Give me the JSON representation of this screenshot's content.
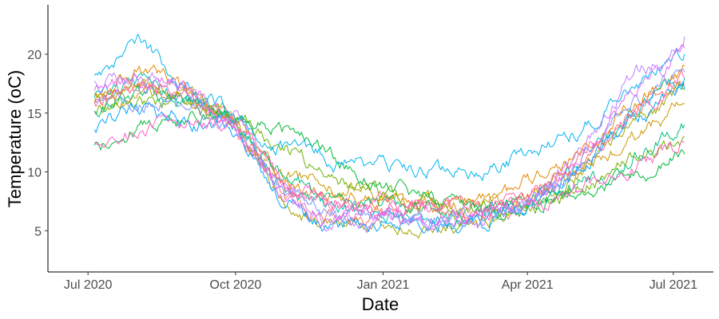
{
  "chart_data": {
    "type": "line",
    "title": "",
    "xlabel": "Date",
    "ylabel": "Temperature (oC)",
    "x_axis": {
      "type": "date",
      "range": [
        "2020-06-06",
        "2021-07-26"
      ],
      "ticks": [
        {
          "date": "2020-07-01",
          "label": "Jul 2020"
        },
        {
          "date": "2020-10-01",
          "label": "Oct 2020"
        },
        {
          "date": "2021-01-01",
          "label": "Jan 2021"
        },
        {
          "date": "2021-04-01",
          "label": "Apr 2021"
        },
        {
          "date": "2021-07-01",
          "label": "Jul 2021"
        }
      ]
    },
    "y_axis": {
      "range": [
        1.5,
        24.2
      ],
      "ticks": [
        5,
        10,
        15,
        20
      ]
    },
    "grid": false,
    "legend": "none",
    "series": [
      {
        "color": "#F8766D",
        "values": [
          [
            "2020-07-05",
            16.0
          ],
          [
            "2020-08-01",
            17.8
          ],
          [
            "2020-09-01",
            16.8
          ],
          [
            "2020-10-01",
            14.0
          ],
          [
            "2020-11-01",
            8.0
          ],
          [
            "2020-12-01",
            6.0
          ],
          [
            "2021-01-01",
            6.8
          ],
          [
            "2021-02-01",
            6.4
          ],
          [
            "2021-03-01",
            6.0
          ],
          [
            "2021-04-01",
            7.5
          ],
          [
            "2021-05-01",
            10.0
          ],
          [
            "2021-06-01",
            14.5
          ],
          [
            "2021-07-08",
            17.5
          ]
        ]
      },
      {
        "color": "#E58700",
        "values": [
          [
            "2020-07-05",
            17.0
          ],
          [
            "2020-08-01",
            18.5
          ],
          [
            "2020-09-01",
            17.0
          ],
          [
            "2020-10-01",
            14.5
          ],
          [
            "2020-11-01",
            9.0
          ],
          [
            "2020-12-01",
            7.5
          ],
          [
            "2021-01-01",
            8.0
          ],
          [
            "2021-02-01",
            7.5
          ],
          [
            "2021-03-01",
            7.0
          ],
          [
            "2021-04-01",
            9.0
          ],
          [
            "2021-05-01",
            11.5
          ],
          [
            "2021-06-01",
            15.5
          ],
          [
            "2021-07-08",
            19.0
          ]
        ]
      },
      {
        "color": "#C99800",
        "values": [
          [
            "2020-07-05",
            15.5
          ],
          [
            "2020-08-01",
            16.8
          ],
          [
            "2020-09-01",
            16.2
          ],
          [
            "2020-10-01",
            14.0
          ],
          [
            "2020-11-01",
            10.0
          ],
          [
            "2020-12-01",
            8.8
          ],
          [
            "2021-01-01",
            8.2
          ],
          [
            "2021-02-01",
            7.5
          ],
          [
            "2021-03-01",
            7.0
          ],
          [
            "2021-04-01",
            8.0
          ],
          [
            "2021-05-01",
            9.8
          ],
          [
            "2021-06-01",
            12.5
          ],
          [
            "2021-07-08",
            15.8
          ]
        ]
      },
      {
        "color": "#A3A500",
        "values": [
          [
            "2020-07-05",
            16.2
          ],
          [
            "2020-08-01",
            17.2
          ],
          [
            "2020-09-01",
            16.5
          ],
          [
            "2020-10-01",
            14.0
          ],
          [
            "2020-11-01",
            7.0
          ],
          [
            "2020-12-01",
            5.0
          ],
          [
            "2021-01-01",
            5.5
          ],
          [
            "2021-02-01",
            5.0
          ],
          [
            "2021-03-01",
            5.2
          ],
          [
            "2021-04-01",
            7.0
          ],
          [
            "2021-05-01",
            9.5
          ],
          [
            "2021-06-01",
            13.8
          ],
          [
            "2021-07-08",
            17.0
          ]
        ]
      },
      {
        "color": "#6BB100",
        "values": [
          [
            "2020-07-05",
            15.0
          ],
          [
            "2020-08-01",
            16.0
          ],
          [
            "2020-09-01",
            15.5
          ],
          [
            "2020-10-01",
            14.5
          ],
          [
            "2020-11-01",
            12.0
          ],
          [
            "2020-12-01",
            9.5
          ],
          [
            "2021-01-01",
            8.0
          ],
          [
            "2021-02-01",
            7.0
          ],
          [
            "2021-03-01",
            6.5
          ],
          [
            "2021-04-01",
            7.0
          ],
          [
            "2021-05-01",
            8.5
          ],
          [
            "2021-06-01",
            10.5
          ],
          [
            "2021-07-08",
            13.0
          ]
        ]
      },
      {
        "color": "#00BA38",
        "values": [
          [
            "2020-07-05",
            12.2
          ],
          [
            "2020-08-01",
            13.8
          ],
          [
            "2020-09-01",
            14.8
          ],
          [
            "2020-10-01",
            14.8
          ],
          [
            "2020-11-01",
            13.5
          ],
          [
            "2020-12-01",
            11.5
          ],
          [
            "2021-01-01",
            9.0
          ],
          [
            "2021-02-01",
            7.5
          ],
          [
            "2021-03-01",
            6.8
          ],
          [
            "2021-04-01",
            7.0
          ],
          [
            "2021-05-01",
            8.0
          ],
          [
            "2021-06-01",
            9.5
          ],
          [
            "2021-07-08",
            11.5
          ]
        ]
      },
      {
        "color": "#00BF7D",
        "values": [
          [
            "2020-07-05",
            15.2
          ],
          [
            "2020-08-01",
            16.5
          ],
          [
            "2020-09-01",
            15.8
          ],
          [
            "2020-10-01",
            14.0
          ],
          [
            "2020-11-01",
            9.5
          ],
          [
            "2020-12-01",
            7.5
          ],
          [
            "2021-01-01",
            7.0
          ],
          [
            "2021-02-01",
            6.5
          ],
          [
            "2021-03-01",
            6.2
          ],
          [
            "2021-04-01",
            7.0
          ],
          [
            "2021-05-01",
            8.5
          ],
          [
            "2021-06-01",
            11.0
          ],
          [
            "2021-07-08",
            14.0
          ]
        ]
      },
      {
        "color": "#00C0B8",
        "values": [
          [
            "2020-07-05",
            16.5
          ],
          [
            "2020-08-01",
            17.5
          ],
          [
            "2020-09-01",
            16.0
          ],
          [
            "2020-10-01",
            14.2
          ],
          [
            "2020-11-01",
            8.5
          ],
          [
            "2020-12-01",
            6.5
          ],
          [
            "2021-01-01",
            7.0
          ],
          [
            "2021-02-01",
            6.2
          ],
          [
            "2021-03-01",
            6.0
          ],
          [
            "2021-04-01",
            7.5
          ],
          [
            "2021-05-01",
            10.5
          ],
          [
            "2021-06-01",
            15.0
          ],
          [
            "2021-07-08",
            18.0
          ]
        ]
      },
      {
        "color": "#00B4EF",
        "values": [
          [
            "2020-07-05",
            18.5
          ],
          [
            "2020-08-01",
            20.8
          ],
          [
            "2020-09-01",
            17.5
          ],
          [
            "2020-10-01",
            14.5
          ],
          [
            "2020-11-01",
            12.0
          ],
          [
            "2020-12-01",
            11.0
          ],
          [
            "2021-01-01",
            10.5
          ],
          [
            "2021-02-01",
            10.0
          ],
          [
            "2021-03-01",
            10.0
          ],
          [
            "2021-04-01",
            11.5
          ],
          [
            "2021-05-01",
            13.5
          ],
          [
            "2021-06-01",
            16.5
          ],
          [
            "2021-07-08",
            20.0
          ]
        ]
      },
      {
        "color": "#00A5FF",
        "values": [
          [
            "2020-07-05",
            14.0
          ],
          [
            "2020-08-01",
            15.0
          ],
          [
            "2020-09-01",
            14.5
          ],
          [
            "2020-10-01",
            13.5
          ],
          [
            "2020-11-01",
            7.5
          ],
          [
            "2020-12-01",
            5.5
          ],
          [
            "2021-01-01",
            6.0
          ],
          [
            "2021-02-01",
            5.5
          ],
          [
            "2021-03-01",
            5.5
          ],
          [
            "2021-04-01",
            7.0
          ],
          [
            "2021-05-01",
            10.0
          ],
          [
            "2021-06-01",
            14.0
          ],
          [
            "2021-07-08",
            17.0
          ]
        ]
      },
      {
        "color": "#7997FF",
        "values": [
          [
            "2020-07-05",
            15.5
          ],
          [
            "2020-08-01",
            16.5
          ],
          [
            "2020-09-01",
            16.0
          ],
          [
            "2020-10-01",
            13.8
          ],
          [
            "2020-11-01",
            8.5
          ],
          [
            "2020-12-01",
            6.5
          ],
          [
            "2021-01-01",
            6.5
          ],
          [
            "2021-02-01",
            6.0
          ],
          [
            "2021-03-01",
            5.8
          ],
          [
            "2021-04-01",
            7.2
          ],
          [
            "2021-05-01",
            10.0
          ],
          [
            "2021-06-01",
            15.5
          ],
          [
            "2021-07-08",
            18.5
          ]
        ]
      },
      {
        "color": "#BF80FF",
        "values": [
          [
            "2020-07-05",
            17.5
          ],
          [
            "2020-08-01",
            18.5
          ],
          [
            "2020-09-01",
            17.2
          ],
          [
            "2020-10-01",
            14.5
          ],
          [
            "2020-11-01",
            8.0
          ],
          [
            "2020-12-01",
            5.5
          ],
          [
            "2021-01-01",
            6.0
          ],
          [
            "2021-02-01",
            5.8
          ],
          [
            "2021-03-01",
            5.5
          ],
          [
            "2021-04-01",
            7.0
          ],
          [
            "2021-05-01",
            11.0
          ],
          [
            "2021-06-01",
            17.5
          ],
          [
            "2021-07-08",
            21.5
          ]
        ]
      },
      {
        "color": "#E46DF6",
        "values": [
          [
            "2020-07-05",
            16.8
          ],
          [
            "2020-08-01",
            18.0
          ],
          [
            "2020-09-01",
            17.0
          ],
          [
            "2020-10-01",
            14.0
          ],
          [
            "2020-11-01",
            7.5
          ],
          [
            "2020-12-01",
            6.0
          ],
          [
            "2021-01-01",
            6.5
          ],
          [
            "2021-02-01",
            6.2
          ],
          [
            "2021-03-01",
            6.0
          ],
          [
            "2021-04-01",
            7.5
          ],
          [
            "2021-05-01",
            10.5
          ],
          [
            "2021-06-01",
            16.0
          ],
          [
            "2021-07-08",
            20.5
          ]
        ]
      },
      {
        "color": "#FF61C3",
        "values": [
          [
            "2020-07-05",
            12.5
          ],
          [
            "2020-08-01",
            13.5
          ],
          [
            "2020-09-01",
            14.2
          ],
          [
            "2020-10-01",
            14.0
          ],
          [
            "2020-11-01",
            9.0
          ],
          [
            "2020-12-01",
            7.0
          ],
          [
            "2021-01-01",
            7.0
          ],
          [
            "2021-02-01",
            6.8
          ],
          [
            "2021-03-01",
            6.5
          ],
          [
            "2021-04-01",
            7.0
          ],
          [
            "2021-05-01",
            8.5
          ],
          [
            "2021-06-01",
            10.0
          ],
          [
            "2021-07-08",
            12.5
          ]
        ]
      },
      {
        "color": "#FF67A4",
        "values": [
          [
            "2020-07-05",
            16.0
          ],
          [
            "2020-08-01",
            17.5
          ],
          [
            "2020-09-01",
            16.5
          ],
          [
            "2020-10-01",
            14.0
          ],
          [
            "2020-11-01",
            8.0
          ],
          [
            "2020-12-01",
            7.0
          ],
          [
            "2021-01-01",
            7.5
          ],
          [
            "2021-02-01",
            7.0
          ],
          [
            "2021-03-01",
            6.5
          ],
          [
            "2021-04-01",
            8.0
          ],
          [
            "2021-05-01",
            10.5
          ],
          [
            "2021-06-01",
            14.5
          ],
          [
            "2021-07-08",
            18.0
          ]
        ]
      }
    ]
  }
}
